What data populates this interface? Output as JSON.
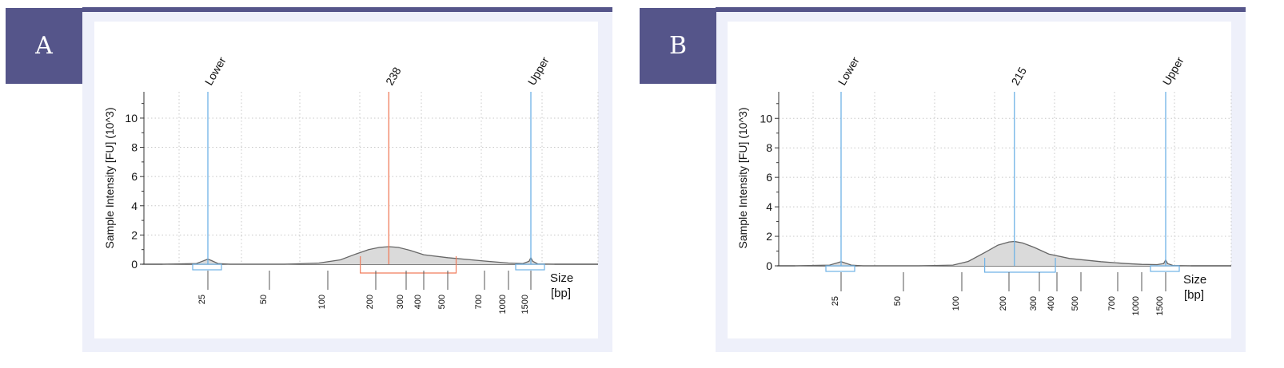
{
  "panels": [
    {
      "label": "A"
    },
    {
      "label": "B"
    }
  ],
  "colors": {
    "frame": "#55558a",
    "frame_bg": "#eef0fa",
    "marker_blue": "#6fb2e6",
    "peak_red": "#f07c5c",
    "trace": "#666666",
    "fill": "#dadada"
  },
  "chart_data": [
    {
      "type": "area",
      "panel": "A",
      "ylabel": "Sample Intensity [FU] (10^3)",
      "xlabel": "Size\n[bp]",
      "xlabel_line1": "Size",
      "xlabel_line2": "[bp]",
      "yticks": [
        "0",
        "2",
        "4",
        "6",
        "8",
        "10"
      ],
      "ylim": [
        0,
        11.8
      ],
      "xscale": "log",
      "xticks": [
        "25",
        "50",
        "100",
        "200",
        "300",
        "400",
        "500",
        "700",
        "1000",
        "1500"
      ],
      "markers": [
        {
          "label": "Lower",
          "size": 25,
          "kind": "ladder"
        },
        {
          "label": "238",
          "size": 238,
          "kind": "peak"
        },
        {
          "label": "Upper",
          "size": 1500,
          "kind": "ladder"
        }
      ],
      "region": [
        160,
        540
      ],
      "trace": {
        "x": [
          15,
          22,
          24,
          25,
          26,
          28,
          32,
          40,
          60,
          90,
          120,
          150,
          180,
          210,
          238,
          270,
          320,
          400,
          500,
          700,
          1000,
          1300,
          1450,
          1500,
          1550,
          1700,
          2300
        ],
        "y": [
          0,
          0.05,
          0.25,
          0.35,
          0.25,
          0.05,
          0,
          0,
          0,
          0.08,
          0.3,
          0.7,
          1.0,
          1.15,
          1.2,
          1.15,
          0.95,
          0.65,
          0.45,
          0.22,
          0.08,
          0.05,
          0.2,
          0.45,
          0.2,
          0.02,
          0
        ]
      }
    },
    {
      "type": "area",
      "panel": "B",
      "ylabel": "Sample Intensity [FU] (10^3)",
      "xlabel": "Size\n[bp]",
      "xlabel_line1": "Size",
      "xlabel_line2": "[bp]",
      "yticks": [
        "0",
        "2",
        "4",
        "6",
        "8",
        "10"
      ],
      "ylim": [
        0,
        11.8
      ],
      "xscale": "log",
      "xticks": [
        "25",
        "50",
        "100",
        "200",
        "300",
        "400",
        "500",
        "700",
        "1000",
        "1500"
      ],
      "markers": [
        {
          "label": "Lower",
          "size": 25,
          "kind": "ladder"
        },
        {
          "label": "215",
          "size": 215,
          "kind": "peak"
        },
        {
          "label": "Upper",
          "size": 1500,
          "kind": "ladder"
        }
      ],
      "region": [
        140,
        390
      ],
      "trace": {
        "x": [
          15,
          22,
          24,
          25,
          26,
          28,
          32,
          40,
          60,
          90,
          110,
          140,
          170,
          200,
          215,
          240,
          280,
          350,
          450,
          600,
          800,
          1000,
          1300,
          1450,
          1500,
          1550,
          1700,
          2300
        ],
        "y": [
          0,
          0.05,
          0.2,
          0.28,
          0.2,
          0.05,
          0,
          0,
          0,
          0.05,
          0.3,
          0.9,
          1.4,
          1.62,
          1.65,
          1.55,
          1.25,
          0.8,
          0.5,
          0.28,
          0.15,
          0.1,
          0.08,
          0.15,
          0.4,
          0.15,
          0.02,
          0
        ]
      }
    }
  ]
}
